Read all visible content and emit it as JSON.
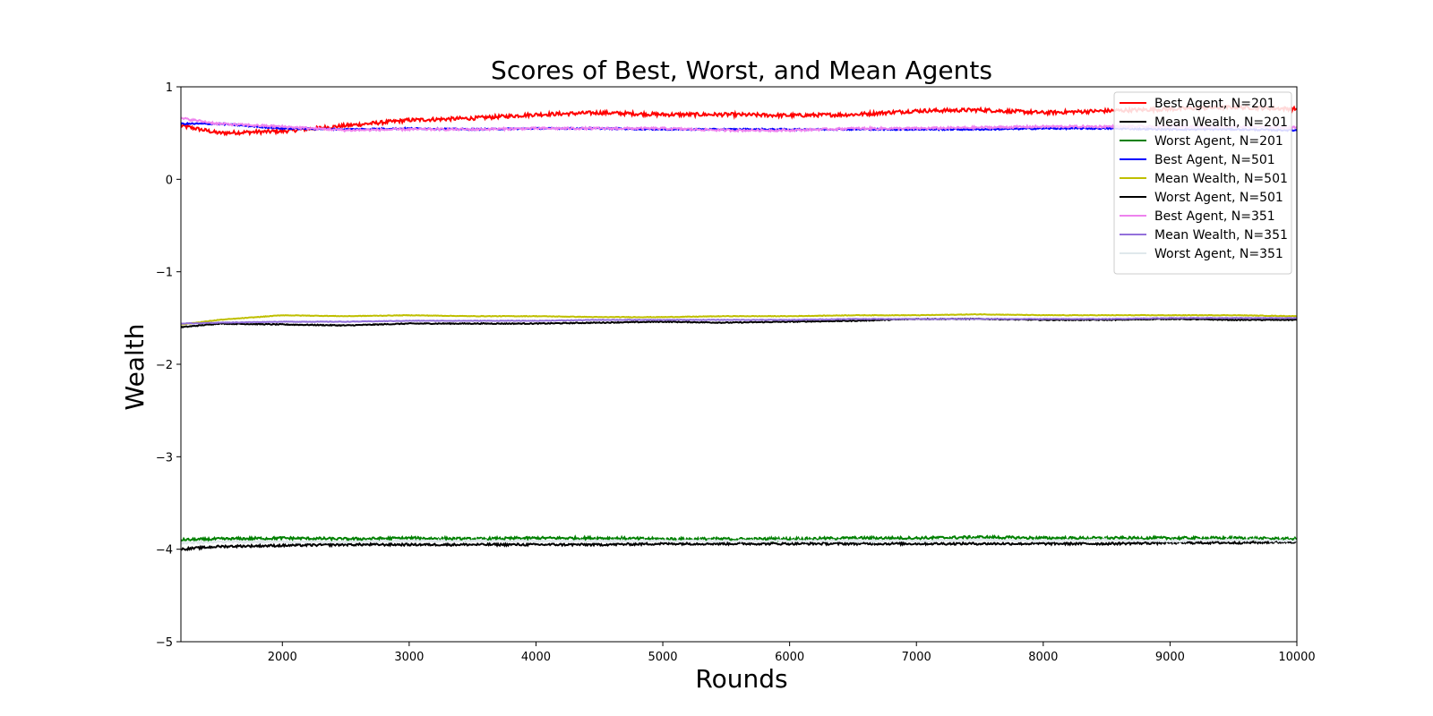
{
  "chart_data": {
    "type": "line",
    "title": "Scores of Best, Worst, and Mean Agents",
    "xlabel": "Rounds",
    "ylabel": "Wealth",
    "xlim": [
      1200,
      10000
    ],
    "ylim": [
      -5,
      1
    ],
    "xticks": [
      2000,
      3000,
      4000,
      5000,
      6000,
      7000,
      8000,
      9000,
      10000
    ],
    "yticks": [
      -5,
      -4,
      -3,
      -2,
      -1,
      0,
      1
    ],
    "yticklabels": [
      "−5",
      "−4",
      "−3",
      "−2",
      "−1",
      "0",
      "1"
    ],
    "grid": false,
    "legend_position": "top-right",
    "x": [
      1200,
      1500,
      2000,
      2500,
      3000,
      3500,
      4000,
      4500,
      5000,
      5500,
      6000,
      6500,
      7000,
      7500,
      8000,
      8500,
      9000,
      9500,
      10000
    ],
    "series": [
      {
        "name": "Best Agent, N=201",
        "color": "#ff0000",
        "noise": 0.02,
        "values": [
          0.58,
          0.5,
          0.52,
          0.58,
          0.64,
          0.66,
          0.7,
          0.72,
          0.7,
          0.7,
          0.69,
          0.7,
          0.74,
          0.75,
          0.72,
          0.74,
          0.76,
          0.78,
          0.76
        ]
      },
      {
        "name": "Mean Wealth, N=201",
        "color": "#000000",
        "noise": 0.005,
        "values": [
          -1.6,
          -1.56,
          -1.57,
          -1.58,
          -1.56,
          -1.56,
          -1.56,
          -1.55,
          -1.54,
          -1.55,
          -1.54,
          -1.53,
          -1.51,
          -1.51,
          -1.52,
          -1.52,
          -1.51,
          -1.52,
          -1.52
        ]
      },
      {
        "name": "Worst Agent, N=201",
        "color": "#008000",
        "noise": 0.015,
        "values": [
          -3.9,
          -3.89,
          -3.88,
          -3.89,
          -3.88,
          -3.89,
          -3.88,
          -3.88,
          -3.89,
          -3.89,
          -3.89,
          -3.88,
          -3.88,
          -3.87,
          -3.88,
          -3.88,
          -3.88,
          -3.88,
          -3.89
        ]
      },
      {
        "name": "Best Agent, N=501",
        "color": "#0000ff",
        "noise": 0.008,
        "values": [
          0.6,
          0.6,
          0.55,
          0.54,
          0.55,
          0.54,
          0.55,
          0.55,
          0.54,
          0.54,
          0.54,
          0.54,
          0.54,
          0.54,
          0.55,
          0.55,
          0.54,
          0.54,
          0.53
        ]
      },
      {
        "name": "Mean Wealth, N=501",
        "color": "#bfbf00",
        "noise": 0.003,
        "values": [
          -1.57,
          -1.52,
          -1.47,
          -1.48,
          -1.47,
          -1.48,
          -1.48,
          -1.49,
          -1.49,
          -1.48,
          -1.48,
          -1.47,
          -1.47,
          -1.46,
          -1.47,
          -1.47,
          -1.47,
          -1.47,
          -1.48
        ]
      },
      {
        "name": "Worst Agent, N=501",
        "color": "#000000",
        "noise": 0.012,
        "values": [
          -4.0,
          -3.97,
          -3.96,
          -3.95,
          -3.95,
          -3.95,
          -3.95,
          -3.95,
          -3.94,
          -3.94,
          -3.94,
          -3.94,
          -3.94,
          -3.94,
          -3.94,
          -3.94,
          -3.93,
          -3.93,
          -3.92
        ]
      },
      {
        "name": "Best Agent, N=351",
        "color": "#ee82ee",
        "noise": 0.012,
        "values": [
          0.66,
          0.6,
          0.57,
          0.53,
          0.54,
          0.54,
          0.55,
          0.55,
          0.55,
          0.53,
          0.53,
          0.55,
          0.55,
          0.56,
          0.57,
          0.57,
          0.57,
          0.57,
          0.56
        ]
      },
      {
        "name": "Mean Wealth, N=351",
        "color": "#9370db",
        "noise": 0.003,
        "values": [
          -1.56,
          -1.55,
          -1.54,
          -1.54,
          -1.53,
          -1.53,
          -1.53,
          -1.52,
          -1.52,
          -1.52,
          -1.52,
          -1.51,
          -1.51,
          -1.51,
          -1.51,
          -1.51,
          -1.5,
          -1.5,
          -1.5
        ]
      },
      {
        "name": "Worst Agent, N=351",
        "color": "#e0e8ec",
        "noise": 0.012,
        "values": [
          -3.93,
          -3.92,
          -3.92,
          -3.92,
          -3.91,
          -3.91,
          -3.91,
          -3.91,
          -3.91,
          -3.91,
          -3.91,
          -3.91,
          -3.91,
          -3.9,
          -3.91,
          -3.9,
          -3.91,
          -3.9,
          -3.91
        ]
      }
    ]
  }
}
